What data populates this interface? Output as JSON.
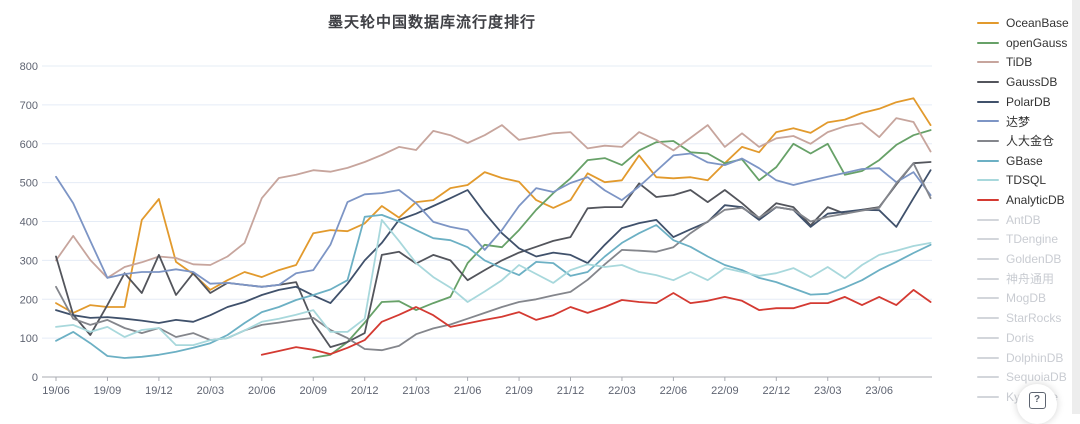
{
  "title": "墨天轮中国数据库流行度排行",
  "help_button": {
    "label": "?"
  },
  "chart_data": {
    "type": "line",
    "title": "墨天轮中国数据库流行度排行",
    "ylim": [
      0,
      800
    ],
    "y_ticks": [
      0,
      100,
      200,
      300,
      400,
      500,
      600,
      700,
      800
    ],
    "grid": true,
    "legend_position": "right",
    "x_tick_labels": [
      "19/06",
      "19/09",
      "19/12",
      "20/03",
      "20/06",
      "20/09",
      "20/12",
      "21/03",
      "21/06",
      "21/09",
      "21/12",
      "22/03",
      "22/06",
      "22/09",
      "22/12",
      "23/03",
      "23/06"
    ],
    "months": [
      "19/06",
      "19/07",
      "19/08",
      "19/09",
      "19/10",
      "19/11",
      "19/12",
      "20/01",
      "20/02",
      "20/03",
      "20/04",
      "20/05",
      "20/06",
      "20/07",
      "20/08",
      "20/09",
      "20/10",
      "20/11",
      "20/12",
      "21/01",
      "21/02",
      "21/03",
      "21/04",
      "21/05",
      "21/06",
      "21/07",
      "21/08",
      "21/09",
      "21/10",
      "21/11",
      "21/12",
      "22/01",
      "22/02",
      "22/03",
      "22/04",
      "22/05",
      "22/06",
      "22/07",
      "22/08",
      "22/09",
      "22/10",
      "22/11",
      "22/12",
      "23/01",
      "23/02",
      "23/03",
      "23/04",
      "23/05",
      "23/06",
      "23/07",
      "23/08",
      "23/09"
    ],
    "series": [
      {
        "name": "OceanBase",
        "color": "#e29a2d",
        "values": [
          190,
          165,
          185,
          180,
          180,
          404,
          458,
          296,
          265,
          224,
          249,
          270,
          257,
          275,
          288,
          370,
          378,
          375,
          395,
          440,
          410,
          450,
          455,
          486,
          494,
          527,
          512,
          502,
          455,
          435,
          455,
          524,
          501,
          506,
          570,
          514,
          511,
          514,
          506,
          550,
          592,
          578,
          630,
          640,
          628,
          655,
          662,
          679,
          690,
          707,
          717,
          648
        ]
      },
      {
        "name": "openGauss",
        "color": "#67a168",
        "values": [
          null,
          null,
          null,
          null,
          null,
          null,
          null,
          null,
          null,
          null,
          null,
          null,
          null,
          null,
          null,
          50,
          57,
          90,
          140,
          193,
          195,
          172,
          190,
          206,
          293,
          340,
          334,
          378,
          430,
          473,
          511,
          558,
          563,
          545,
          583,
          604,
          607,
          578,
          575,
          550,
          560,
          506,
          540,
          600,
          575,
          600,
          520,
          530,
          558,
          597,
          622,
          635
        ]
      },
      {
        "name": "TiDB",
        "color": "#c7a59d",
        "values": [
          300,
          363,
          301,
          255,
          283,
          295,
          310,
          306,
          290,
          288,
          310,
          345,
          460,
          512,
          520,
          532,
          528,
          538,
          553,
          571,
          592,
          584,
          633,
          622,
          602,
          622,
          648,
          610,
          618,
          627,
          630,
          588,
          595,
          592,
          630,
          610,
          583,
          615,
          648,
          592,
          627,
          592,
          614,
          620,
          600,
          630,
          645,
          653,
          617,
          666,
          656,
          580
        ]
      },
      {
        "name": "GaussDB",
        "color": "#53555c",
        "values": [
          310,
          160,
          108,
          185,
          267,
          216,
          314,
          211,
          267,
          216,
          242,
          237,
          232,
          237,
          244,
          141,
          77,
          90,
          113,
          314,
          322,
          292,
          314,
          300,
          249,
          275,
          300,
          320,
          335,
          350,
          360,
          434,
          437,
          437,
          498,
          463,
          468,
          481,
          450,
          481,
          447,
          409,
          447,
          437,
          390,
          437,
          420,
          430,
          437,
          495,
          550,
          553
        ]
      },
      {
        "name": "PolarDB",
        "color": "#40516b",
        "values": [
          172,
          159,
          152,
          154,
          150,
          145,
          139,
          147,
          142,
          159,
          180,
          193,
          211,
          224,
          232,
          210,
          190,
          240,
          300,
          345,
          404,
          420,
          440,
          460,
          481,
          422,
          370,
          331,
          310,
          320,
          314,
          293,
          340,
          383,
          396,
          404,
          360,
          380,
          399,
          442,
          437,
          404,
          437,
          430,
          386,
          420,
          425,
          430,
          429,
          386,
          460,
          532
        ]
      },
      {
        "name": "达梦",
        "color": "#7d95c5",
        "values": [
          515,
          447,
          350,
          255,
          265,
          270,
          270,
          277,
          270,
          240,
          242,
          237,
          232,
          237,
          267,
          275,
          340,
          450,
          470,
          473,
          481,
          447,
          399,
          386,
          378,
          327,
          378,
          440,
          486,
          476,
          499,
          514,
          480,
          455,
          490,
          530,
          570,
          575,
          552,
          545,
          562,
          537,
          506,
          494,
          505,
          515,
          525,
          535,
          537,
          501,
          527,
          468
        ]
      },
      {
        "name": "人大金仓",
        "color": "#84868c",
        "values": [
          232,
          150,
          134,
          147,
          126,
          113,
          126,
          103,
          113,
          95,
          100,
          120,
          134,
          140,
          147,
          152,
          121,
          100,
          72,
          69,
          80,
          110,
          125,
          135,
          150,
          165,
          180,
          193,
          200,
          210,
          219,
          250,
          290,
          327,
          325,
          322,
          334,
          370,
          400,
          430,
          435,
          410,
          437,
          430,
          400,
          412,
          420,
          428,
          435,
          498,
          550,
          460
        ]
      },
      {
        "name": "GBase",
        "color": "#6cb0c4",
        "values": [
          93,
          116,
          87,
          54,
          49,
          52,
          57,
          65,
          75,
          87,
          108,
          139,
          167,
          180,
          198,
          211,
          225,
          249,
          412,
          417,
          400,
          378,
          357,
          352,
          334,
          300,
          280,
          262,
          296,
          293,
          260,
          270,
          310,
          345,
          370,
          391,
          352,
          335,
          310,
          288,
          275,
          255,
          244,
          228,
          212,
          214,
          230,
          249,
          275,
          296,
          319,
          340
        ]
      },
      {
        "name": "TDSQL",
        "color": "#a8d8dc",
        "values": [
          129,
          134,
          116,
          129,
          103,
          121,
          126,
          82,
          82,
          95,
          100,
          120,
          142,
          150,
          160,
          172,
          116,
          116,
          150,
          404,
          350,
          293,
          257,
          230,
          193,
          220,
          249,
          288,
          265,
          242,
          275,
          290,
          283,
          288,
          270,
          262,
          249,
          270,
          249,
          280,
          270,
          260,
          267,
          280,
          257,
          283,
          254,
          288,
          314,
          325,
          337,
          345
        ]
      },
      {
        "name": "AnalyticDB",
        "color": "#d43a32",
        "values": [
          null,
          null,
          null,
          null,
          null,
          null,
          null,
          null,
          null,
          null,
          null,
          null,
          57,
          67,
          77,
          70,
          59,
          75,
          95,
          142,
          160,
          180,
          159,
          129,
          138,
          147,
          155,
          167,
          147,
          159,
          180,
          165,
          180,
          198,
          193,
          190,
          216,
          190,
          196,
          206,
          196,
          172,
          177,
          177,
          190,
          190,
          206,
          185,
          206,
          185,
          224,
          193
        ]
      }
    ],
    "disabled_series": [
      "AntDB",
      "TDengine",
      "GoldenDB",
      "神舟通用",
      "MogDB",
      "StarRocks",
      "Doris",
      "DolphinDB",
      "SequoiaDB",
      "Kyligence"
    ]
  }
}
